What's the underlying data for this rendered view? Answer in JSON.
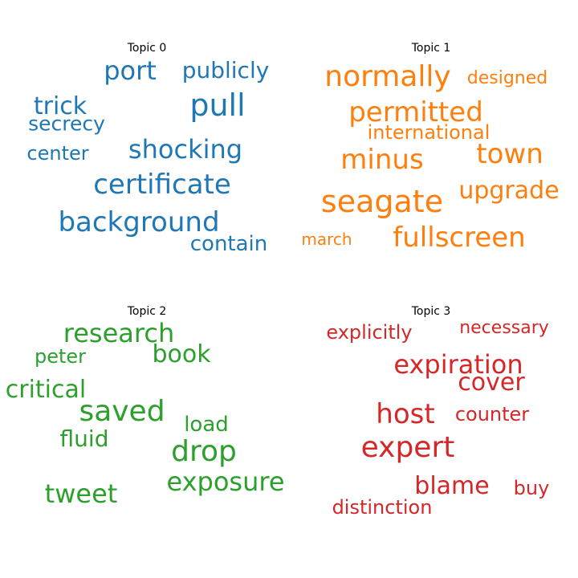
{
  "chart_data": [
    {
      "type": "wordcloud",
      "title": "Topic 0",
      "color": "#1f77b4",
      "words": [
        {
          "text": "pull",
          "weight": 1.0
        },
        {
          "text": "certificate",
          "weight": 0.95
        },
        {
          "text": "background",
          "weight": 0.92
        },
        {
          "text": "shocking",
          "weight": 0.87
        },
        {
          "text": "port",
          "weight": 0.85
        },
        {
          "text": "trick",
          "weight": 0.82
        },
        {
          "text": "publicly",
          "weight": 0.7
        },
        {
          "text": "contain",
          "weight": 0.68
        },
        {
          "text": "secrecy",
          "weight": 0.66
        },
        {
          "text": "center",
          "weight": 0.64
        }
      ]
    },
    {
      "type": "wordcloud",
      "title": "Topic 1",
      "color": "#ff7f0e",
      "words": [
        {
          "text": "normally",
          "weight": 1.0
        },
        {
          "text": "seagate",
          "weight": 1.0
        },
        {
          "text": "fullscreen",
          "weight": 0.95
        },
        {
          "text": "permitted",
          "weight": 0.93
        },
        {
          "text": "minus",
          "weight": 0.9
        },
        {
          "text": "town",
          "weight": 0.88
        },
        {
          "text": "upgrade",
          "weight": 0.85
        },
        {
          "text": "international",
          "weight": 0.7
        },
        {
          "text": "designed",
          "weight": 0.65
        },
        {
          "text": "march",
          "weight": 0.6
        }
      ]
    },
    {
      "type": "wordcloud",
      "title": "Topic 2",
      "color": "#2ca02c",
      "words": [
        {
          "text": "research",
          "weight": 1.0
        },
        {
          "text": "book",
          "weight": 0.95
        },
        {
          "text": "tweet",
          "weight": 0.88
        },
        {
          "text": "exposure",
          "weight": 0.86
        },
        {
          "text": "critical",
          "weight": 0.84
        },
        {
          "text": "fluid",
          "weight": 0.82
        },
        {
          "text": "load",
          "weight": 0.8
        },
        {
          "text": "peter",
          "weight": 0.78
        },
        {
          "text": "drop",
          "weight": 0.75
        },
        {
          "text": "saved",
          "weight": 0.72
        }
      ]
    },
    {
      "type": "wordcloud",
      "title": "Topic 3",
      "color": "#d62728",
      "words": [
        {
          "text": "expert",
          "weight": 1.0
        },
        {
          "text": "host",
          "weight": 0.95
        },
        {
          "text": "expiration",
          "weight": 0.9
        },
        {
          "text": "cover",
          "weight": 0.87
        },
        {
          "text": "blame",
          "weight": 0.85
        },
        {
          "text": "explicitly",
          "weight": 0.75
        },
        {
          "text": "necessary",
          "weight": 0.72
        },
        {
          "text": "distinction",
          "weight": 0.7
        },
        {
          "text": "buy",
          "weight": 0.7
        },
        {
          "text": "counter",
          "weight": 0.68
        }
      ]
    }
  ]
}
